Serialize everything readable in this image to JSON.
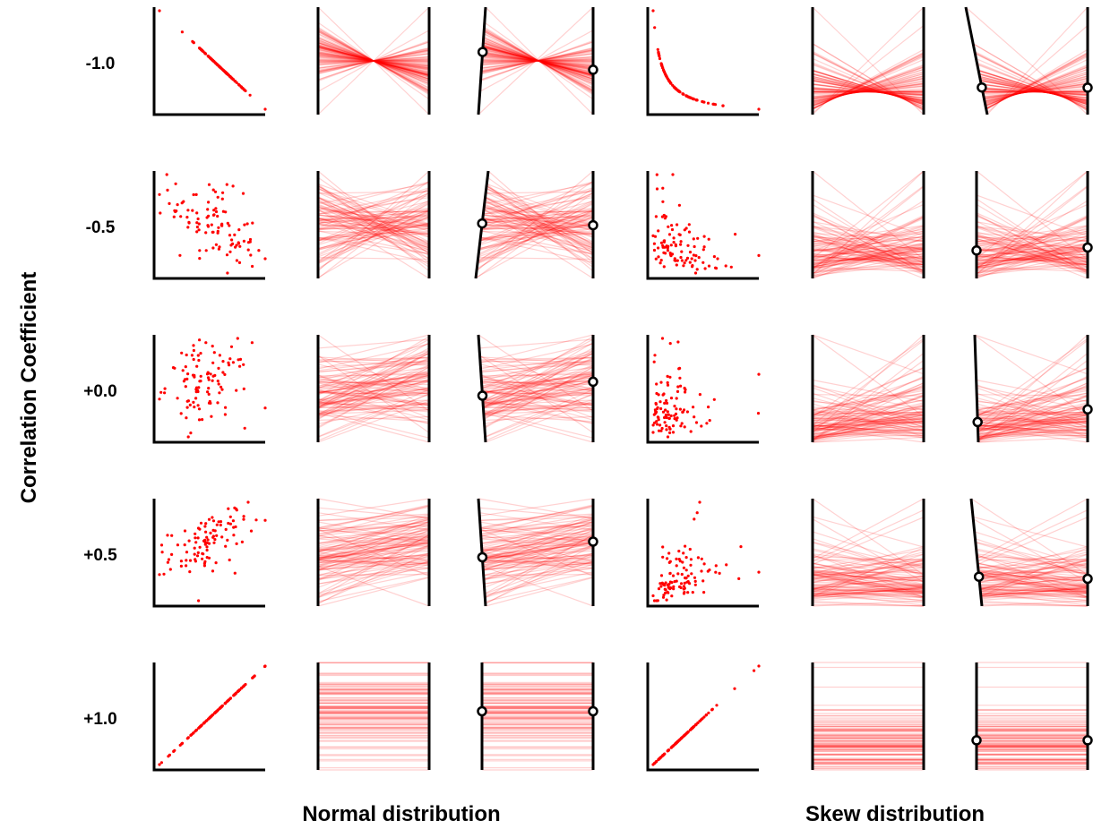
{
  "chart_data": {
    "type": "scatter",
    "description_free_layout": true,
    "ylabel": "Correlation Coefficient",
    "row_labels": [
      "-1.0",
      "-0.5",
      "+0.0",
      "+0.5",
      "+1.0"
    ],
    "correlations": [
      -1.0,
      -0.5,
      0.0,
      0.5,
      1.0
    ],
    "group_labels": [
      "Normal distribution",
      "Skew distribution"
    ],
    "distributions": [
      "normal",
      "skew"
    ],
    "panels_per_group": [
      "scatterplot",
      "parallel coordinates",
      "parallel coordinates with rotated axis"
    ],
    "samples_per_panel": 100,
    "point_color": "#ff0000",
    "line_color": "#ff0000",
    "axis_color": "#000000",
    "rotated_axis_tilt": {
      "normal": [
        4,
        7,
        -4,
        -4,
        0
      ],
      "skew": [
        -12,
        0,
        -2,
        -6,
        0
      ]
    }
  }
}
